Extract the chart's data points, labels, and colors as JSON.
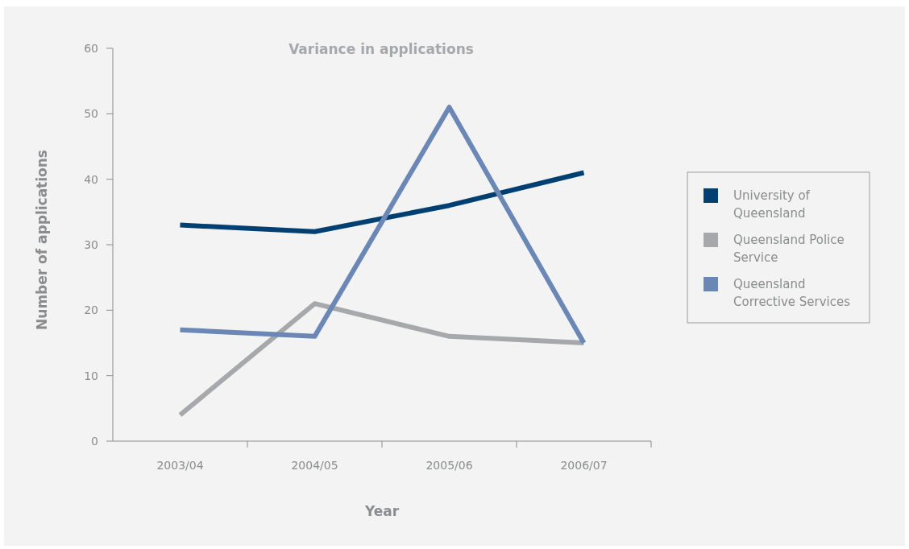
{
  "chart_data": {
    "type": "line",
    "title": "Variance in applications",
    "xlabel": "Year",
    "ylabel": "Number of applications",
    "categories": [
      "2003/04",
      "2004/05",
      "2005/06",
      "2006/07"
    ],
    "series": [
      {
        "name": "University of Queensland",
        "color": "#003f72",
        "values": [
          33,
          32,
          36,
          41
        ]
      },
      {
        "name": "Queensland Police Service",
        "color": "#a6a8ab",
        "values": [
          4,
          21,
          16,
          15
        ]
      },
      {
        "name": "Queensland Corrective Services",
        "color": "#6b87b5",
        "values": [
          17,
          16,
          51,
          15
        ]
      }
    ],
    "ylim": [
      0,
      60
    ],
    "yticks": [
      0,
      10,
      20,
      30,
      40,
      50,
      60
    ],
    "grid": false,
    "legend": "right",
    "marker": "none",
    "line_style": "solid"
  }
}
